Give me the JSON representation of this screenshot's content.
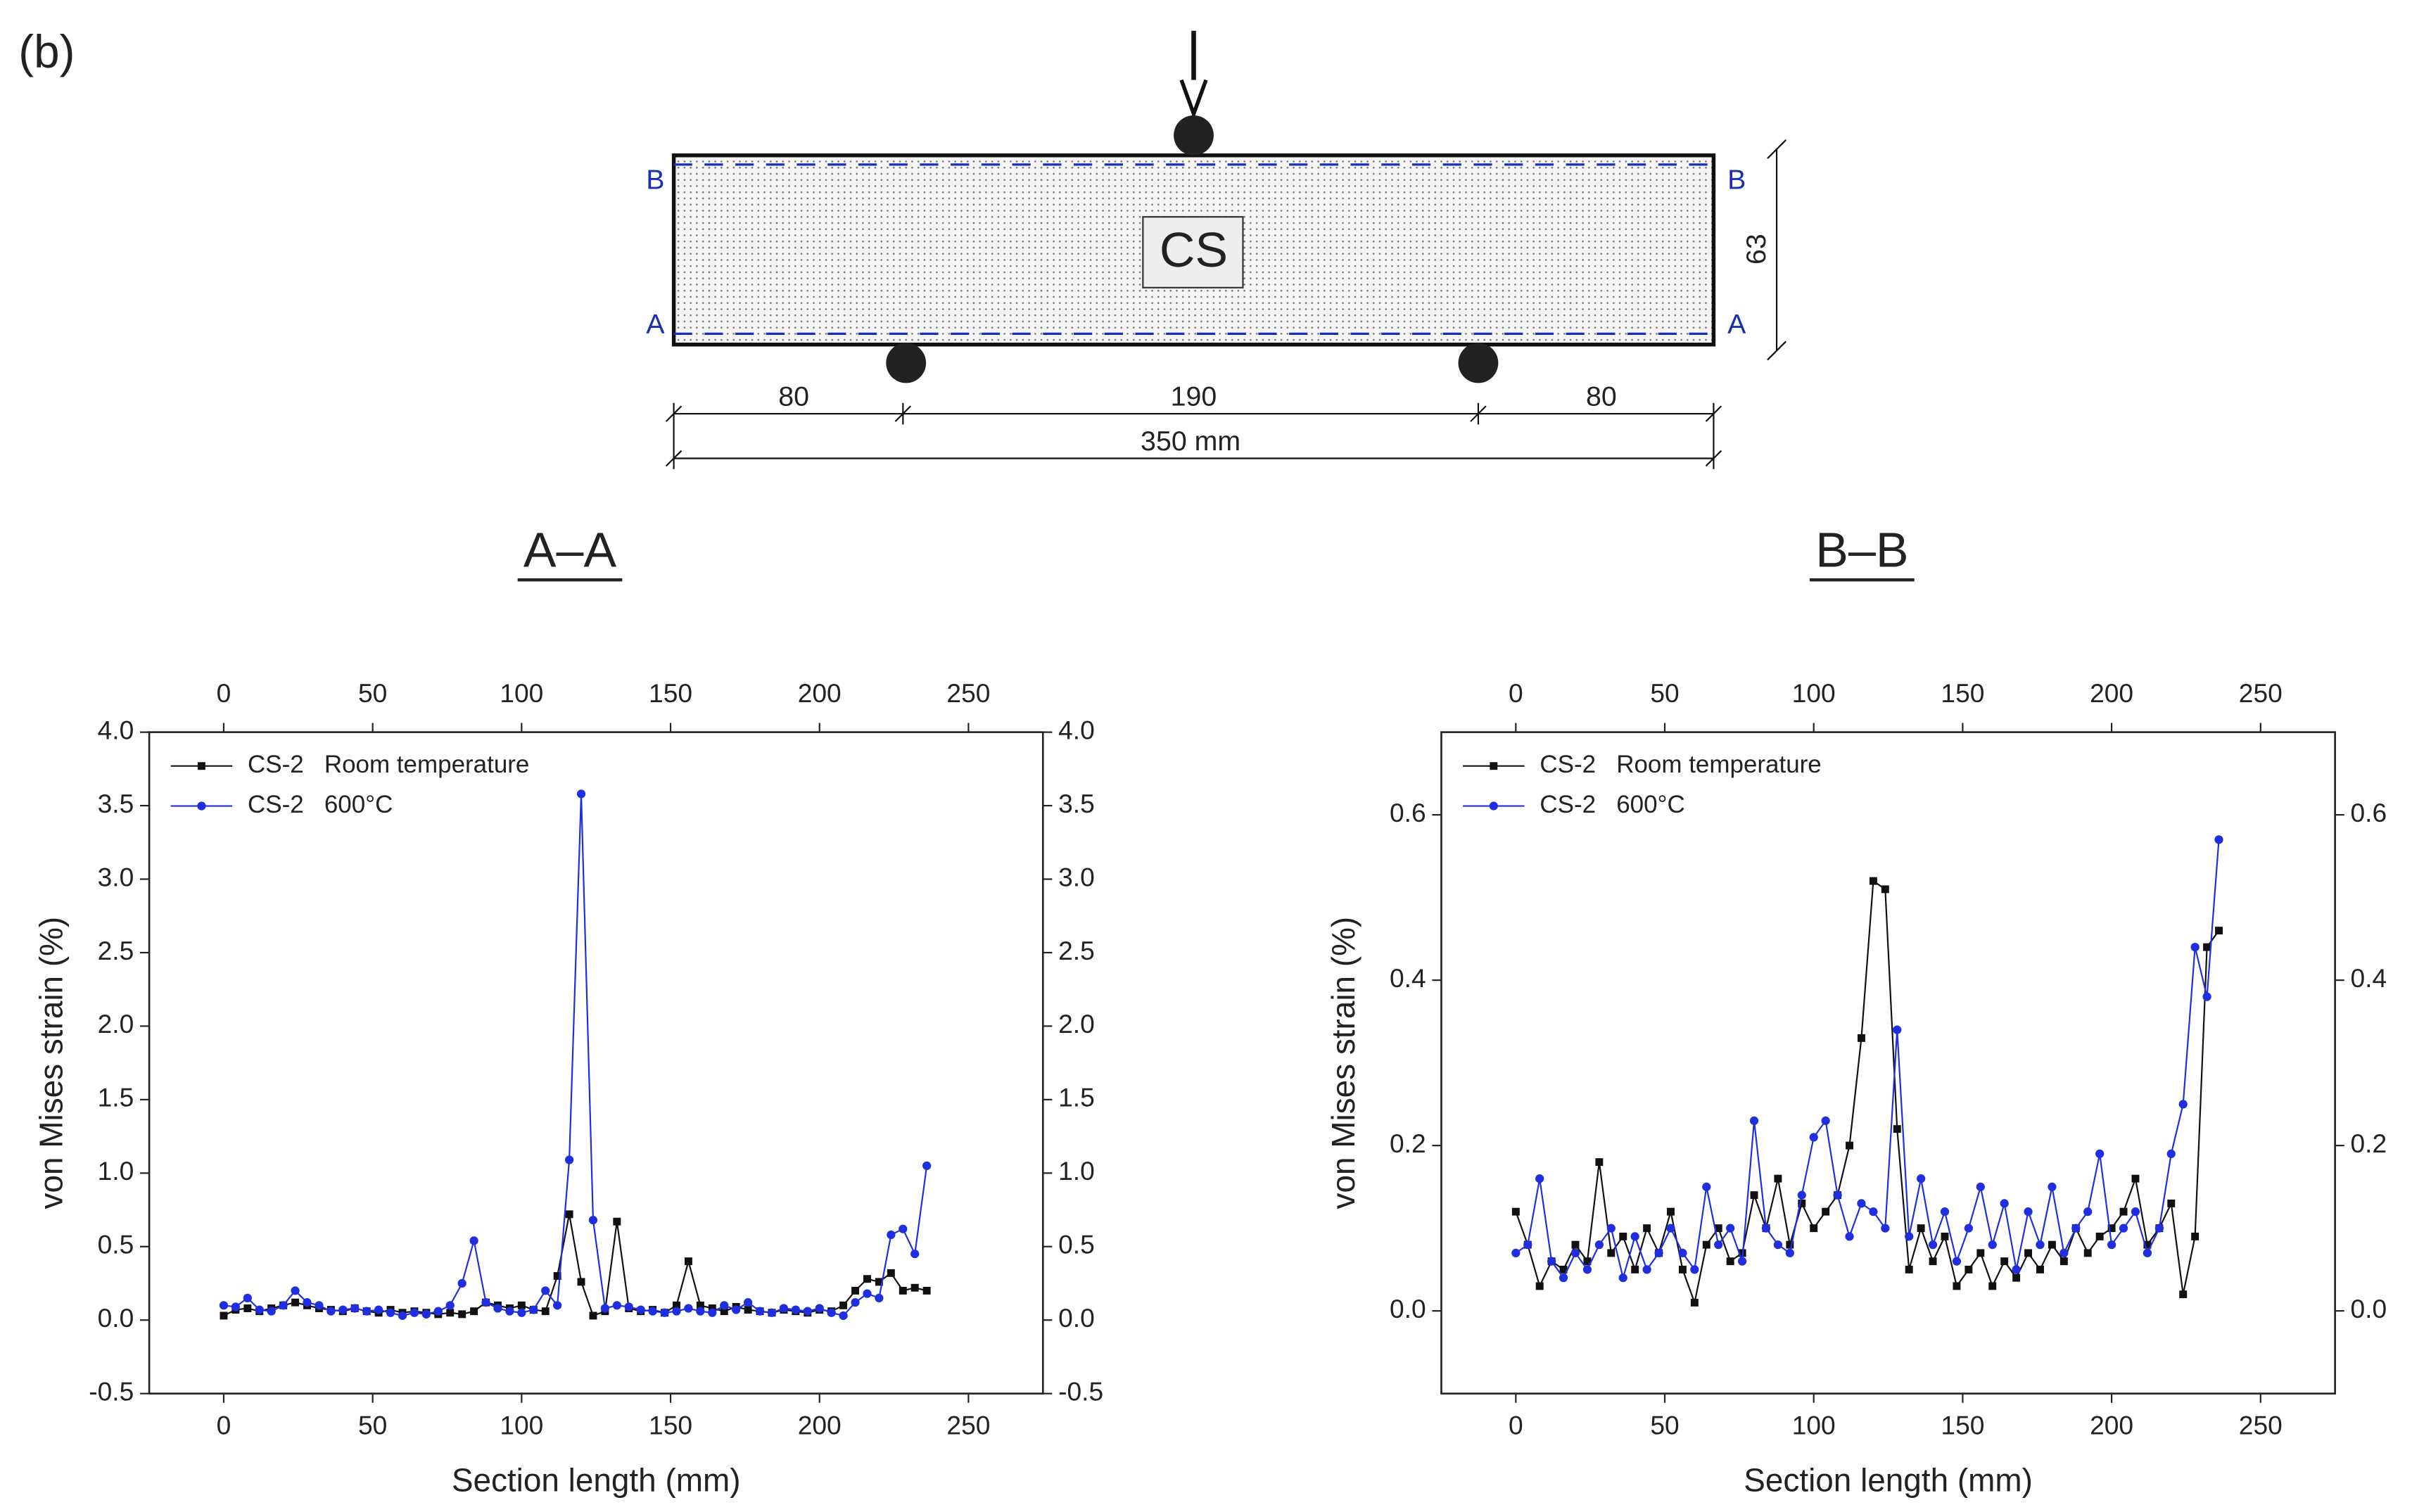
{
  "figure_label": "(b)",
  "diagram": {
    "top_left": "B",
    "top_right": "B",
    "bottom_left": "A",
    "bottom_right": "A",
    "specimen": "CS",
    "height": "63",
    "span_left": "80",
    "span_mid": "190",
    "span_right": "80",
    "total": "350 mm"
  },
  "chart_data": [
    {
      "type": "line",
      "title": "A–A",
      "xlabel": "Section length (mm)",
      "ylabel": "von Mises strain (%)",
      "xlim": [
        -25,
        275
      ],
      "xticks": [
        0,
        50,
        100,
        150,
        200,
        250
      ],
      "ylim": [
        -0.5,
        4.0
      ],
      "yticks": [
        -0.5,
        {
          "value": 0,
          "label": "0.0"
        },
        0.5,
        {
          "value": 1,
          "label": "1.0"
        },
        1.5,
        {
          "value": 2,
          "label": "2.0"
        },
        2.5,
        {
          "value": 3,
          "label": "3.0"
        },
        3.5,
        {
          "value": 4,
          "label": "4.0"
        }
      ],
      "legend": "upper left",
      "x": [
        0,
        4,
        8,
        12,
        16,
        20,
        24,
        28,
        32,
        36,
        40,
        44,
        48,
        52,
        56,
        60,
        64,
        68,
        72,
        76,
        80,
        84,
        88,
        92,
        96,
        100,
        104,
        108,
        112,
        116,
        120,
        124,
        128,
        132,
        136,
        140,
        144,
        148,
        152,
        156,
        160,
        164,
        168,
        172,
        176,
        180,
        184,
        188,
        192,
        196,
        200,
        204,
        208,
        212,
        216,
        220,
        224,
        228,
        232,
        236
      ],
      "series": [
        {
          "name": "CS-2   Room temperature",
          "color": "#111111",
          "marker": "square",
          "values": [
            0.03,
            0.07,
            0.08,
            0.06,
            0.08,
            0.1,
            0.12,
            0.1,
            0.08,
            0.07,
            0.06,
            0.08,
            0.06,
            0.05,
            0.07,
            0.05,
            0.06,
            0.05,
            0.04,
            0.05,
            0.04,
            0.06,
            0.12,
            0.1,
            0.08,
            0.1,
            0.07,
            0.06,
            0.3,
            0.72,
            0.26,
            0.03,
            0.06,
            0.67,
            0.08,
            0.06,
            0.07,
            0.05,
            0.1,
            0.4,
            0.1,
            0.08,
            0.06,
            0.09,
            0.07,
            0.06,
            0.05,
            0.07,
            0.06,
            0.05,
            0.07,
            0.06,
            0.1,
            0.2,
            0.28,
            0.26,
            0.32,
            0.2,
            0.22,
            0.2
          ]
        },
        {
          "name": "CS-2   600°C",
          "color": "#1f2fe0",
          "marker": "circle",
          "values": [
            0.1,
            0.09,
            0.15,
            0.07,
            0.06,
            0.1,
            0.2,
            0.12,
            0.1,
            0.06,
            0.07,
            0.08,
            0.06,
            0.07,
            0.05,
            0.03,
            0.05,
            0.04,
            0.06,
            0.1,
            0.25,
            0.54,
            0.12,
            0.08,
            0.06,
            0.05,
            0.07,
            0.2,
            0.1,
            1.09,
            3.58,
            0.68,
            0.08,
            0.1,
            0.09,
            0.07,
            0.06,
            0.05,
            0.06,
            0.08,
            0.06,
            0.05,
            0.1,
            0.07,
            0.12,
            0.06,
            0.05,
            0.08,
            0.07,
            0.06,
            0.08,
            0.05,
            0.03,
            0.12,
            0.18,
            0.15,
            0.58,
            0.62,
            0.45,
            1.05
          ]
        }
      ]
    },
    {
      "type": "line",
      "title": "B–B",
      "xlabel": "Section length (mm)",
      "ylabel": "von Mises strain (%)",
      "xlim": [
        -25,
        275
      ],
      "xticks": [
        0,
        50,
        100,
        150,
        200,
        250
      ],
      "ylim": [
        -0.1,
        0.7
      ],
      "yticks": [
        {
          "value": 0,
          "label": "0.0"
        },
        0.2,
        0.4,
        0.6
      ],
      "legend": "upper left",
      "x": [
        0,
        4,
        8,
        12,
        16,
        20,
        24,
        28,
        32,
        36,
        40,
        44,
        48,
        52,
        56,
        60,
        64,
        68,
        72,
        76,
        80,
        84,
        88,
        92,
        96,
        100,
        104,
        108,
        112,
        116,
        120,
        124,
        128,
        132,
        136,
        140,
        144,
        148,
        152,
        156,
        160,
        164,
        168,
        172,
        176,
        180,
        184,
        188,
        192,
        196,
        200,
        204,
        208,
        212,
        216,
        220,
        224,
        228,
        232,
        236
      ],
      "series": [
        {
          "name": "CS-2   Room temperature",
          "color": "#111111",
          "marker": "square",
          "values": [
            0.12,
            0.08,
            0.03,
            0.06,
            0.05,
            0.08,
            0.06,
            0.18,
            0.07,
            0.09,
            0.05,
            0.1,
            0.07,
            0.12,
            0.05,
            0.01,
            0.08,
            0.1,
            0.06,
            0.07,
            0.14,
            0.1,
            0.16,
            0.08,
            0.13,
            0.1,
            0.12,
            0.14,
            0.2,
            0.33,
            0.52,
            0.51,
            0.22,
            0.05,
            0.1,
            0.06,
            0.09,
            0.03,
            0.05,
            0.07,
            0.03,
            0.06,
            0.04,
            0.07,
            0.05,
            0.08,
            0.06,
            0.1,
            0.07,
            0.09,
            0.1,
            0.12,
            0.16,
            0.08,
            0.1,
            0.13,
            0.02,
            0.09,
            0.44,
            0.46
          ]
        },
        {
          "name": "CS-2   600°C",
          "color": "#1f2fe0",
          "marker": "circle",
          "values": [
            0.07,
            0.08,
            0.16,
            0.06,
            0.04,
            0.07,
            0.05,
            0.08,
            0.1,
            0.04,
            0.09,
            0.05,
            0.07,
            0.1,
            0.07,
            0.05,
            0.15,
            0.08,
            0.1,
            0.06,
            0.23,
            0.1,
            0.08,
            0.07,
            0.14,
            0.21,
            0.23,
            0.14,
            0.09,
            0.13,
            0.12,
            0.1,
            0.34,
            0.09,
            0.16,
            0.08,
            0.12,
            0.06,
            0.1,
            0.15,
            0.08,
            0.13,
            0.05,
            0.12,
            0.08,
            0.15,
            0.07,
            0.1,
            0.12,
            0.19,
            0.08,
            0.1,
            0.12,
            0.07,
            0.1,
            0.19,
            0.25,
            0.44,
            0.38,
            0.57
          ]
        }
      ]
    }
  ]
}
